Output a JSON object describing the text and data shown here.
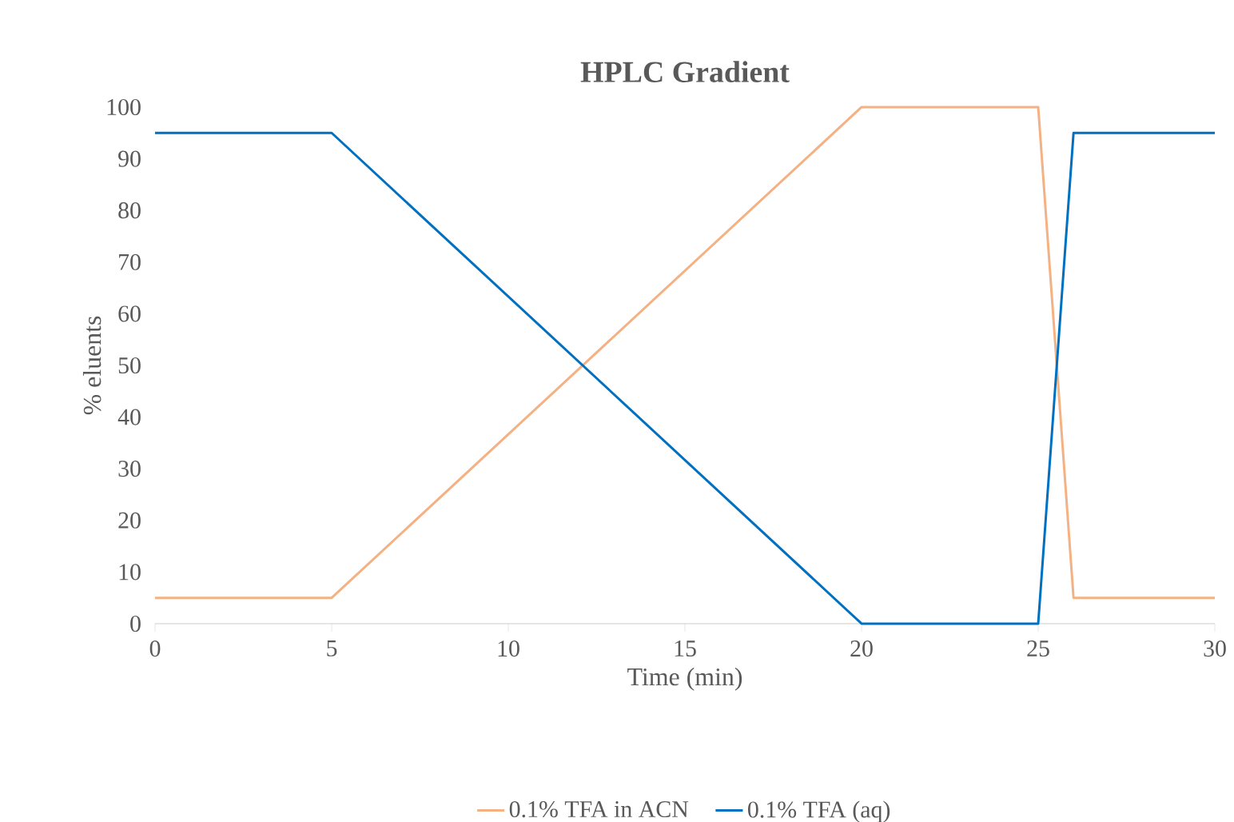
{
  "chart_data": {
    "type": "line",
    "title": "HPLC Gradient",
    "xlabel": "Time (min)",
    "ylabel": "% eluents",
    "x": [
      0,
      5,
      20,
      25,
      26,
      30
    ],
    "series": [
      {
        "name": "0.1% TFA in ACN",
        "color": "#f4b183",
        "values": [
          5,
          5,
          100,
          100,
          5,
          5
        ]
      },
      {
        "name": "0.1% TFA (aq)",
        "color": "#0070c0",
        "values": [
          95,
          95,
          0,
          0,
          95,
          95
        ]
      }
    ],
    "xlim": [
      0,
      30
    ],
    "ylim": [
      0,
      100
    ],
    "xticks": [
      0,
      5,
      10,
      15,
      20,
      25,
      30
    ],
    "yticks": [
      0,
      10,
      20,
      30,
      40,
      50,
      60,
      70,
      80,
      90,
      100
    ],
    "legend": "bottom"
  }
}
